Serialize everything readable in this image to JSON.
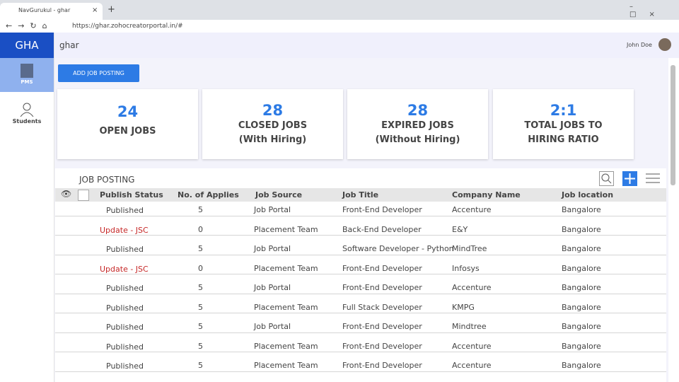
{
  "browser": {
    "tab_title": "NavGurukul - ghar",
    "url": "https://ghar.zohocreatorportal.in/#"
  },
  "sidebar": {
    "logo": "GHA",
    "items": [
      "PMS",
      "Students"
    ]
  },
  "header": {
    "title": "ghar",
    "user": "John Doe"
  },
  "button": "ADD JOB POSTING",
  "stats": [
    {
      "value": 24,
      "lines": [
        "OPEN JOBS"
      ]
    },
    {
      "value": 28,
      "lines": [
        "CLOSED JOBS",
        "(With Hiring)"
      ]
    },
    {
      "value": 28,
      "lines": [
        "EXPIRED JOBS",
        "(Without Hiring)"
      ]
    },
    {
      "value": "2:1",
      "lines": [
        "TOTAL JOBS TO",
        "HIRING RATIO"
      ]
    }
  ],
  "table": {
    "title": "JOB POSTING",
    "columns": [
      "Publish Status",
      "No. of Applies",
      "Job Source",
      "Job Title",
      "Company Name",
      "Job location"
    ],
    "rows": [
      [
        "Published",
        5,
        "Job Portal",
        "Front-End Developer",
        "Accenture",
        "Bangalore"
      ],
      [
        "Update - JSC",
        0,
        "Placement Team",
        "Back-End Developer",
        "E&Y",
        "Bangalore"
      ],
      [
        "Published",
        5,
        "Job Portal",
        "Software Developer - Python",
        "MindTree",
        "Bangalore"
      ],
      [
        "Update - JSC",
        0,
        "Placement Team",
        "Front-End Developer",
        "Infosys",
        "Bangalore"
      ],
      [
        "Published",
        5,
        "Job Portal",
        "Front-End Developer",
        "Accenture",
        "Bangalore"
      ],
      [
        "Published",
        5,
        "Placement Team",
        "Full Stack Developer",
        "KMPG",
        "Bangalore"
      ],
      [
        "Published",
        5,
        "Job Portal",
        "Front-End Developer",
        "Mindtree",
        "Bangalore"
      ],
      [
        "Published",
        5,
        "Placement Team",
        "Front-End Developer",
        "Accenture",
        "Bangalore"
      ],
      [
        "Published",
        5,
        "Placement Team",
        "Front-End Developer",
        "Accenture",
        "Bangalore"
      ]
    ],
    "status_colors": [
      "#444444",
      "#c62828",
      "#444444",
      "#c62828",
      "#444444",
      "#444444",
      "#444444",
      "#444444",
      "#444444"
    ]
  }
}
